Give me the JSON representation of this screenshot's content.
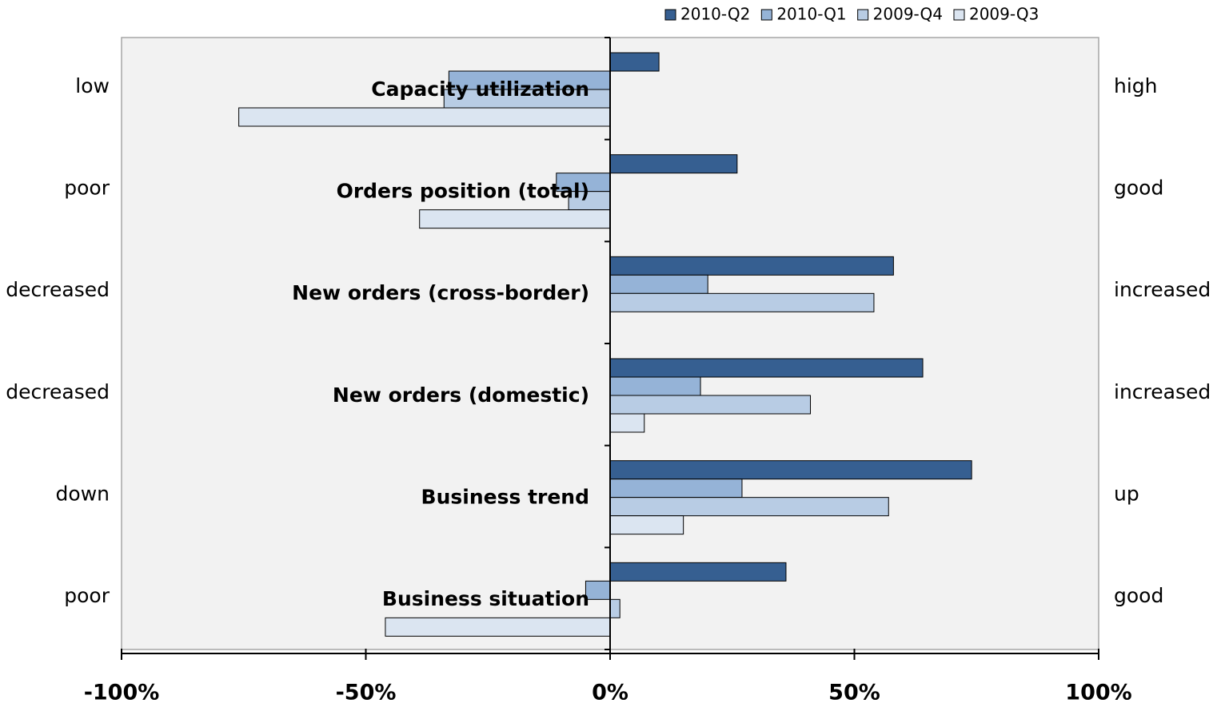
{
  "chart_data": {
    "type": "bar",
    "orientation": "horizontal",
    "categories": [
      "Capacity utilization",
      "Orders position (total)",
      "New orders (cross-border)",
      "New orders (domestic)",
      "Business trend",
      "Business situation"
    ],
    "left_labels": [
      "low",
      "poor",
      "decreased",
      "decreased",
      "down",
      "poor"
    ],
    "right_labels": [
      "high",
      "good",
      "increased",
      "increased",
      "up",
      "good"
    ],
    "series": [
      {
        "name": "2010-Q2",
        "color": "#365f91",
        "values": [
          10,
          26,
          58,
          64,
          74,
          36
        ]
      },
      {
        "name": "2010-Q1",
        "color": "#95b3d7",
        "values": [
          -33,
          -11,
          20,
          18.5,
          27,
          -5
        ]
      },
      {
        "name": "2009-Q4",
        "color": "#b8cce4",
        "values": [
          -34,
          -8.5,
          54,
          41,
          57,
          2
        ]
      },
      {
        "name": "2009-Q3",
        "color": "#dbe5f1",
        "values": [
          -76,
          -39,
          null,
          7,
          15,
          -46
        ]
      }
    ],
    "xlim": [
      -100,
      100
    ],
    "xticks": [
      {
        "value": -100,
        "label": "-100%"
      },
      {
        "value": -50,
        "label": "-50%"
      },
      {
        "value": 0,
        "label": "0%"
      },
      {
        "value": 50,
        "label": "50%"
      },
      {
        "value": 100,
        "label": "100%"
      }
    ],
    "legend": "top-right"
  }
}
